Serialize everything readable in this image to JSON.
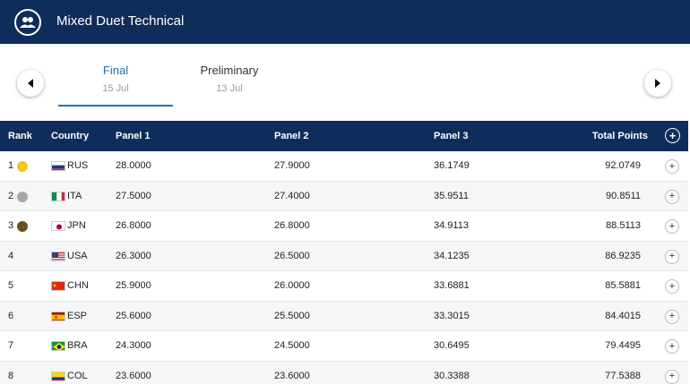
{
  "header": {
    "title": "Mixed Duet Technical",
    "logo_icon": "swimmers-icon"
  },
  "tabs": [
    {
      "label": "Final",
      "date": "15 Jul",
      "active": true
    },
    {
      "label": "Preliminary",
      "date": "13 Jul",
      "active": false
    }
  ],
  "table": {
    "columns": {
      "rank": "Rank",
      "country": "Country",
      "p1": "Panel 1",
      "p2": "Panel 2",
      "p3": "Panel 3",
      "total": "Total Points"
    },
    "expand_icon": "+",
    "rows": [
      {
        "rank": "1",
        "medal": "gold",
        "medal_color": "#f5c518",
        "flag": "RUS",
        "country": "RUS",
        "p1": "28.0000",
        "p2": "27.9000",
        "p3": "36.1749",
        "total": "92.0749"
      },
      {
        "rank": "2",
        "medal": "silver",
        "medal_color": "#a8a8a8",
        "flag": "ITA",
        "country": "ITA",
        "p1": "27.5000",
        "p2": "27.4000",
        "p3": "35.9511",
        "total": "90.8511"
      },
      {
        "rank": "3",
        "medal": "bronze",
        "medal_color": "#6b4f1d",
        "flag": "JPN",
        "country": "JPN",
        "p1": "26.8000",
        "p2": "26.8000",
        "p3": "34.9113",
        "total": "88.5113"
      },
      {
        "rank": "4",
        "medal": "",
        "medal_color": "",
        "flag": "USA",
        "country": "USA",
        "p1": "26.3000",
        "p2": "26.5000",
        "p3": "34.1235",
        "total": "86.9235"
      },
      {
        "rank": "5",
        "medal": "",
        "medal_color": "",
        "flag": "CHN",
        "country": "CHN",
        "p1": "25.9000",
        "p2": "26.0000",
        "p3": "33.6881",
        "total": "85.5881"
      },
      {
        "rank": "6",
        "medal": "",
        "medal_color": "",
        "flag": "ESP",
        "country": "ESP",
        "p1": "25.6000",
        "p2": "25.5000",
        "p3": "33.3015",
        "total": "84.4015"
      },
      {
        "rank": "7",
        "medal": "",
        "medal_color": "",
        "flag": "BRA",
        "country": "BRA",
        "p1": "24.3000",
        "p2": "24.5000",
        "p3": "30.6495",
        "total": "79.4495"
      },
      {
        "rank": "8",
        "medal": "",
        "medal_color": "",
        "flag": "COL",
        "country": "COL",
        "p1": "23.6000",
        "p2": "23.6000",
        "p3": "30.3388",
        "total": "77.5388"
      }
    ]
  },
  "colors": {
    "header_bg": "#0f2d5a",
    "accent": "#2a6fa8"
  }
}
